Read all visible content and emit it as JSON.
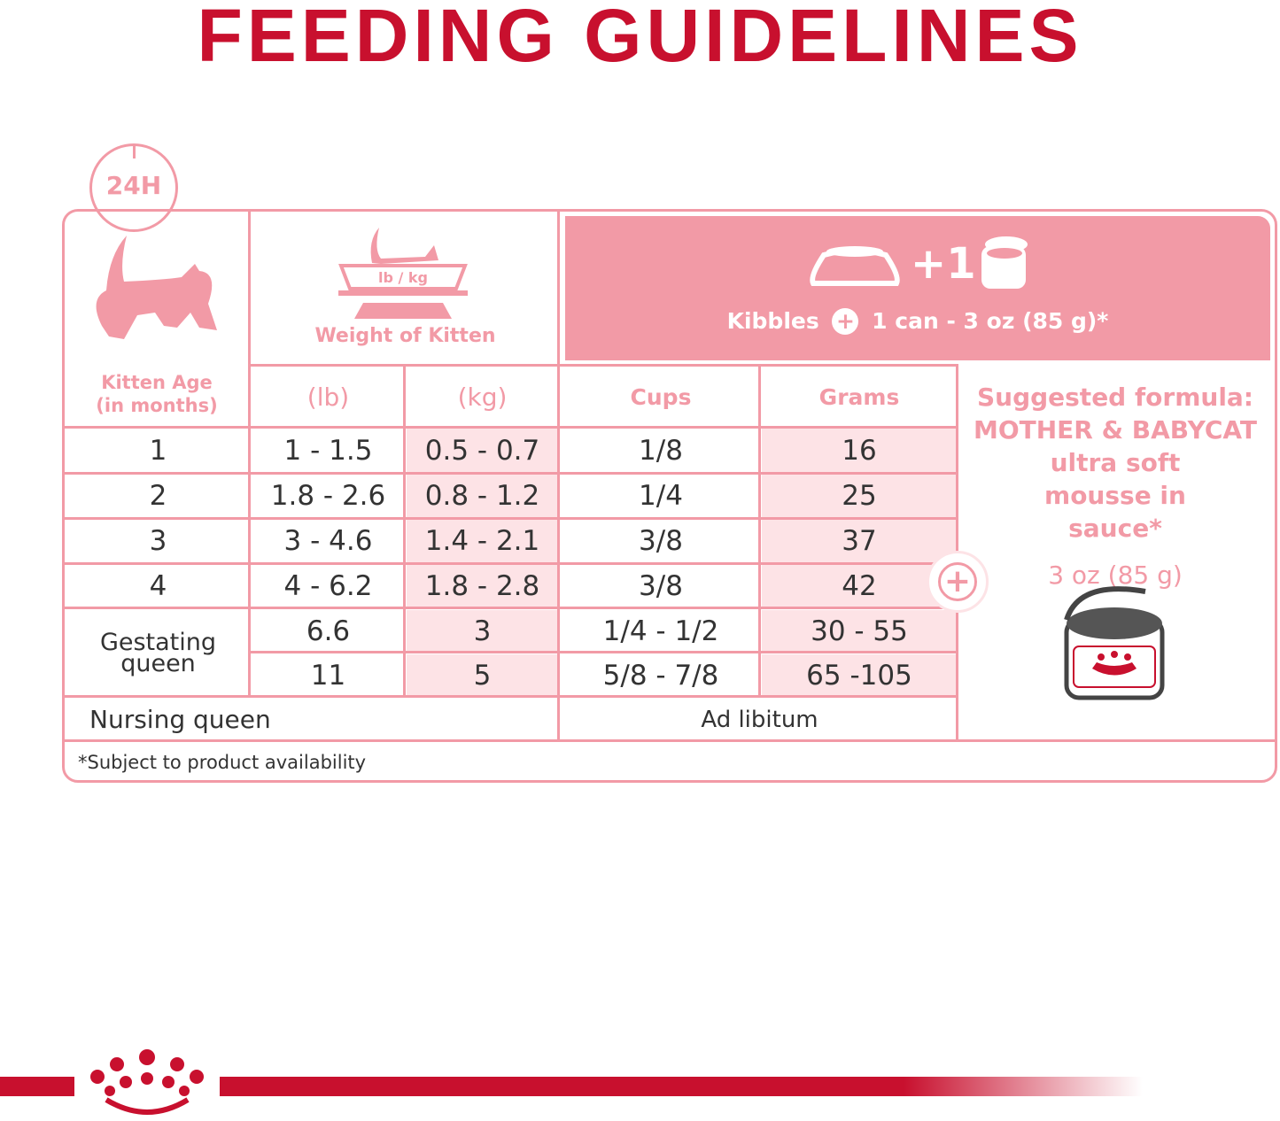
{
  "title": "FEEDING GUIDELINES",
  "badge": "24H",
  "headers": {
    "age": "Kitten Age\n(in months)",
    "weight": "Weight of Kitten",
    "scale_label": "lb / kg",
    "lb": "(lb)",
    "kg": "(kg)",
    "cups": "Cups",
    "grams": "Grams",
    "plus_one": "+1",
    "kibbles": "Kibbles",
    "can_text": "1 can  -  3 oz (85 g)*"
  },
  "rows": [
    {
      "age": "1",
      "lb": "1 - 1.5",
      "kg": "0.5 - 0.7",
      "cups": "1/8",
      "grams": "16"
    },
    {
      "age": "2",
      "lb": "1.8 - 2.6",
      "kg": "0.8 - 1.2",
      "cups": "1/4",
      "grams": "25"
    },
    {
      "age": "3",
      "lb": "3 - 4.6",
      "kg": "1.4 - 2.1",
      "cups": "3/8",
      "grams": "37"
    },
    {
      "age": "4",
      "lb": "4 - 6.2",
      "kg": "1.8 - 2.8",
      "cups": "3/8",
      "grams": "42"
    },
    {
      "age": "Gestating queen",
      "lb": "6.6",
      "kg": "3",
      "cups": "1/4 - 1/2",
      "grams": "30 - 55"
    },
    {
      "age": "",
      "lb": "11",
      "kg": "5",
      "cups": "5/8 - 7/8",
      "grams": "65 -105"
    }
  ],
  "nursing": {
    "label": "Nursing queen",
    "value": "Ad libitum"
  },
  "formula": {
    "heading": "Suggested formula:",
    "product": "MOTHER & BABYCAT",
    "desc": "ultra soft mousse in sauce*",
    "amount": "3 oz (85 g)"
  },
  "footnote": "*Subject to product availability",
  "colors": {
    "brand_red": "#c8102e",
    "pink": "#f29aa6",
    "light_pink": "#fde3e6"
  },
  "icons": [
    "clock-24h-icon",
    "kitten-icon",
    "scale-icon",
    "bowl-icon",
    "can-icon",
    "plus-icon",
    "crown-logo"
  ]
}
